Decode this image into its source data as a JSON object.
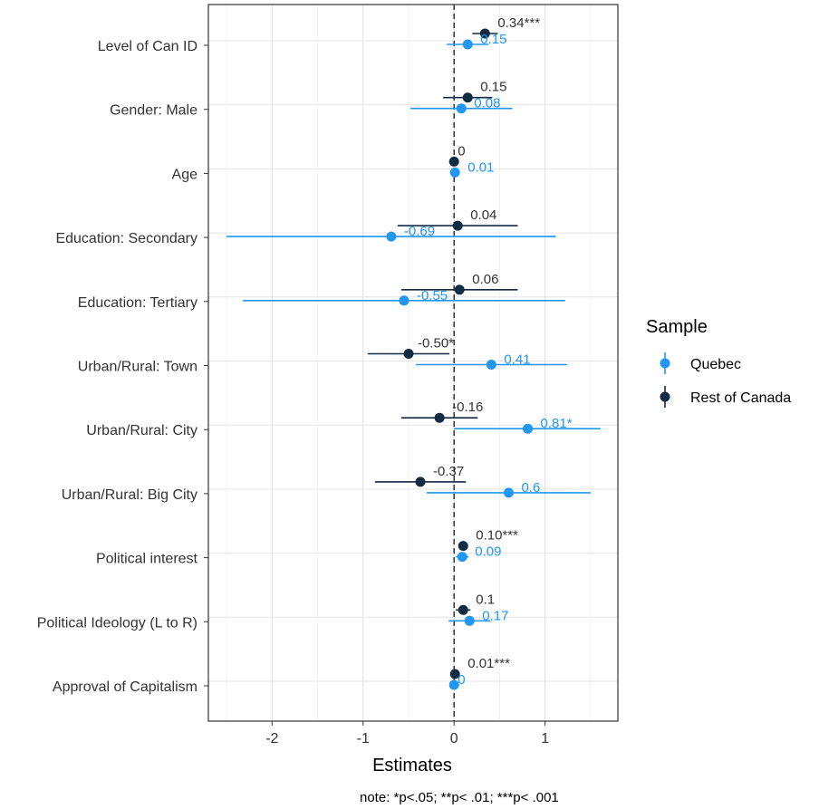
{
  "chart_data": {
    "type": "coefficient-plot",
    "xlabel": "Estimates",
    "note": "note: *p<.05; **p< .01; ***p< .001",
    "xlim": [
      -2.7,
      1.8
    ],
    "xticks": [
      -2,
      -1,
      0,
      1
    ],
    "xtick_labels": [
      "-2",
      "-1",
      "0",
      "1"
    ],
    "reference_line": 0,
    "grid": true,
    "legend": {
      "title": "Sample",
      "position": "right"
    },
    "terms": [
      "Level of Can ID",
      "Gender: Male",
      "Age",
      "Education: Secondary",
      "Education: Tertiary",
      "Urban/Rural: Town",
      "Urban/Rural: City",
      "Urban/Rural: Big City",
      "Political interest",
      "Political Ideology (L to R)",
      "Approval of Capitalism"
    ],
    "series": [
      {
        "name": "Rest of Canada",
        "color": "#132B43",
        "estimates": [
          0.34,
          0.15,
          0,
          0.04,
          0.06,
          -0.5,
          -0.16,
          -0.37,
          0.1,
          0.1,
          0.01
        ],
        "ci_low": [
          0.2,
          -0.12,
          -0.02,
          -0.62,
          -0.58,
          -0.95,
          -0.58,
          -0.87,
          0.06,
          0.02,
          0.0
        ],
        "ci_high": [
          0.48,
          0.42,
          0.02,
          0.7,
          0.7,
          -0.05,
          0.26,
          0.13,
          0.14,
          0.18,
          0.02
        ],
        "labels": [
          "0.34***",
          "0.15",
          "0",
          "0.04",
          "0.06",
          "-0.50*",
          "-0.16",
          "-0.37",
          "0.10***",
          "0.1",
          "0.01***"
        ]
      },
      {
        "name": "Quebec",
        "color": "#2196F3",
        "estimates": [
          0.15,
          0.08,
          0.01,
          -0.69,
          -0.55,
          0.41,
          0.81,
          0.6,
          0.09,
          0.17,
          0
        ],
        "ci_low": [
          -0.08,
          -0.48,
          -0.01,
          -2.5,
          -2.32,
          -0.42,
          0.0,
          -0.3,
          0.02,
          -0.06,
          -0.01
        ],
        "ci_high": [
          0.38,
          0.64,
          0.03,
          1.12,
          1.22,
          1.24,
          1.61,
          1.5,
          0.16,
          0.4,
          0.01
        ],
        "labels": [
          "0.15",
          "0.08",
          "0.01",
          "-0.69",
          "-0.55",
          "0.41",
          "0.81*",
          "0.6",
          "0.09",
          "0.17",
          "0"
        ]
      }
    ],
    "legend_order": [
      "Quebec",
      "Rest of Canada"
    ]
  }
}
